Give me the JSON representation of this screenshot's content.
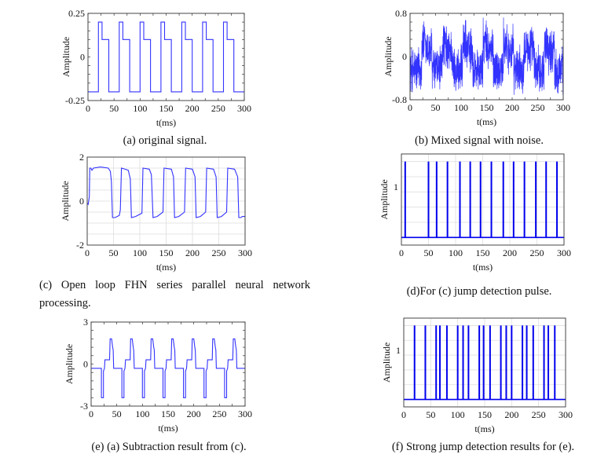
{
  "captions": {
    "a": "(a) original signal.",
    "b": "(b) Mixed signal with noise.",
    "c": "(c) Open loop FHN series parallel neural network processing.",
    "d": "(d)For (c) jump detection pulse.",
    "e": "(e) (a) Subtraction result from (c).",
    "f": "(f) Strong jump detection results for (e)."
  },
  "colors": {
    "line": "#3333ff",
    "spike": "#0000ee",
    "grid": "#dddddd",
    "axis": "#333333"
  },
  "chart_data": [
    {
      "id": "a",
      "type": "line",
      "title": "",
      "xlabel": "t(ms)",
      "ylabel": "Amplitude",
      "xlim": [
        0,
        300
      ],
      "ylim": [
        -0.25,
        0.25
      ],
      "grid": false,
      "xticks": [
        "0",
        "50",
        "100",
        "150",
        "200",
        "250",
        "300"
      ],
      "xtick_values": [
        0,
        50,
        100,
        150,
        200,
        250,
        300
      ],
      "yticks": [
        "-0.25",
        "0",
        "0.25"
      ],
      "ytick_values": [
        -0.25,
        0,
        0.25
      ],
      "steps": [
        [
          0,
          -0.2
        ],
        [
          20,
          0.2
        ],
        [
          27,
          0.1
        ],
        [
          40,
          -0.2
        ],
        [
          60,
          0.2
        ],
        [
          67,
          0.1
        ],
        [
          80,
          -0.2
        ],
        [
          100,
          0.2
        ],
        [
          107,
          0.1
        ],
        [
          120,
          -0.2
        ],
        [
          140,
          0.2
        ],
        [
          147,
          0.1
        ],
        [
          160,
          -0.2
        ],
        [
          180,
          0.2
        ],
        [
          187,
          0.1
        ],
        [
          200,
          -0.2
        ],
        [
          220,
          0.2
        ],
        [
          227,
          0.1
        ],
        [
          240,
          -0.2
        ],
        [
          260,
          0.2
        ],
        [
          267,
          0.1
        ],
        [
          280,
          -0.2
        ],
        [
          300,
          -0.2
        ]
      ]
    },
    {
      "id": "b",
      "type": "line",
      "title": "",
      "xlabel": "t(ms)",
      "ylabel": "Amplitude",
      "xlim": [
        0,
        300
      ],
      "ylim": [
        -0.8,
        0.8
      ],
      "grid": false,
      "xticks": [
        "0",
        "50",
        "100",
        "150",
        "200",
        "250",
        "300"
      ],
      "xtick_values": [
        0,
        50,
        100,
        150,
        200,
        250,
        300
      ],
      "yticks": [
        "-0.8",
        "0",
        "0.8"
      ],
      "ytick_values": [
        -0.8,
        0,
        0.8
      ],
      "base_signal": "a",
      "base_scale": 1.2,
      "noise_amplitude": 0.45,
      "samples": 1200
    },
    {
      "id": "c",
      "type": "line",
      "title": "",
      "xlabel": "t(ms)",
      "ylabel": "Amplitude",
      "xlim": [
        0,
        300
      ],
      "ylim": [
        -2,
        2
      ],
      "grid": true,
      "xticks": [
        "0",
        "50",
        "100",
        "150",
        "200",
        "250",
        "300"
      ],
      "xtick_values": [
        0,
        50,
        100,
        150,
        200,
        250,
        300
      ],
      "yticks": [
        "-2",
        "0",
        "2"
      ],
      "ytick_values": [
        -2,
        0,
        2
      ],
      "grid_y": [
        -1.5,
        -1,
        -0.5,
        0,
        0.5,
        1,
        1.5
      ],
      "points": [
        [
          0,
          -0.1
        ],
        [
          2,
          -0.15
        ],
        [
          4,
          0.2
        ],
        [
          5,
          1.5
        ],
        [
          7,
          1.5
        ],
        [
          9,
          1.4
        ],
        [
          12,
          1.5
        ],
        [
          25,
          1.55
        ],
        [
          40,
          1.5
        ],
        [
          44,
          1.35
        ],
        [
          46,
          0.9
        ],
        [
          48,
          -0.75
        ],
        [
          53,
          -0.75
        ],
        [
          61,
          -0.65
        ],
        [
          63,
          -0.4
        ],
        [
          65,
          1.5
        ],
        [
          72,
          1.45
        ],
        [
          78,
          1.4
        ],
        [
          82,
          1.0
        ],
        [
          84,
          -0.75
        ],
        [
          92,
          -0.7
        ],
        [
          104,
          -0.55
        ],
        [
          106,
          1.5
        ],
        [
          118,
          1.45
        ],
        [
          122,
          1.2
        ],
        [
          125,
          -0.75
        ],
        [
          133,
          -0.7
        ],
        [
          144,
          -0.5
        ],
        [
          146,
          1.5
        ],
        [
          160,
          1.45
        ],
        [
          164,
          1.1
        ],
        [
          166,
          -0.75
        ],
        [
          174,
          -0.7
        ],
        [
          185,
          -0.5
        ],
        [
          187,
          1.5
        ],
        [
          200,
          1.45
        ],
        [
          205,
          1.1
        ],
        [
          207,
          -0.75
        ],
        [
          215,
          -0.7
        ],
        [
          225,
          -0.5
        ],
        [
          227,
          1.5
        ],
        [
          240,
          1.45
        ],
        [
          245,
          1.1
        ],
        [
          247,
          -0.75
        ],
        [
          255,
          -0.7
        ],
        [
          265,
          -0.5
        ],
        [
          267,
          1.5
        ],
        [
          280,
          1.45
        ],
        [
          286,
          1.1
        ],
        [
          288,
          -0.75
        ],
        [
          292,
          -0.75
        ],
        [
          295,
          -0.7
        ],
        [
          300,
          -0.7
        ]
      ]
    },
    {
      "id": "d",
      "type": "line",
      "title": "",
      "xlabel": "t(ms)",
      "ylabel": "Amplitude",
      "xlim": [
        0,
        300
      ],
      "ylim": [
        -0.15,
        1.65
      ],
      "grid": true,
      "xticks": [
        "0",
        "50",
        "100",
        "150",
        "200",
        "250",
        "300"
      ],
      "xtick_values": [
        0,
        50,
        100,
        150,
        200,
        250,
        300
      ],
      "yticks": [
        "1"
      ],
      "ytick_values": [
        1
      ],
      "grid_y": [
        0,
        0.3,
        0.6,
        0.9,
        1.2,
        1.5
      ],
      "baseline": 0,
      "spike_height": 1.5,
      "spikes": [
        7,
        50,
        65,
        85,
        108,
        127,
        146,
        166,
        188,
        207,
        227,
        248,
        267,
        287
      ]
    },
    {
      "id": "e",
      "type": "line",
      "title": "",
      "xlabel": "t(ms)",
      "ylabel": "Amplitude",
      "xlim": [
        0,
        300
      ],
      "ylim": [
        -3,
        3
      ],
      "grid": false,
      "xticks": [
        "0",
        "50",
        "100",
        "150",
        "200",
        "250",
        "300"
      ],
      "xtick_values": [
        0,
        50,
        100,
        150,
        200,
        250,
        300
      ],
      "yticks": [
        "-3",
        "0",
        "3"
      ],
      "ytick_values": [
        -3,
        0,
        3
      ],
      "baseline": -0.3,
      "onsets": [
        20,
        60,
        100,
        140,
        180,
        220,
        260
      ],
      "cycle_shape": [
        [
          0,
          -0.3
        ],
        [
          0,
          -2.4
        ],
        [
          4,
          -2.4
        ],
        [
          4,
          -0.5
        ],
        [
          6,
          -0.3
        ],
        [
          7,
          0.3
        ],
        [
          16,
          0.3
        ],
        [
          17,
          1.8
        ],
        [
          20,
          1.8
        ],
        [
          22,
          1.2
        ],
        [
          23,
          1.0
        ],
        [
          24,
          -0.3
        ]
      ]
    },
    {
      "id": "f",
      "type": "line",
      "title": "",
      "xlabel": "t(ms)",
      "ylabel": "Amplitude",
      "xlim": [
        0,
        300
      ],
      "ylim": [
        -0.15,
        1.65
      ],
      "grid": true,
      "xticks": [
        "0",
        "50",
        "100",
        "150",
        "200",
        "250",
        "300"
      ],
      "xtick_values": [
        0,
        50,
        100,
        150,
        200,
        250,
        300
      ],
      "yticks": [
        "1"
      ],
      "ytick_values": [
        1
      ],
      "grid_y": [
        0,
        0.3,
        0.6,
        0.9,
        1.2,
        1.5
      ],
      "baseline": 0,
      "spike_height": 1.5,
      "spikes": [
        20,
        40,
        60,
        67,
        80,
        100,
        110,
        120,
        140,
        148,
        160,
        180,
        190,
        200,
        220,
        228,
        240,
        260,
        268,
        280
      ]
    }
  ]
}
